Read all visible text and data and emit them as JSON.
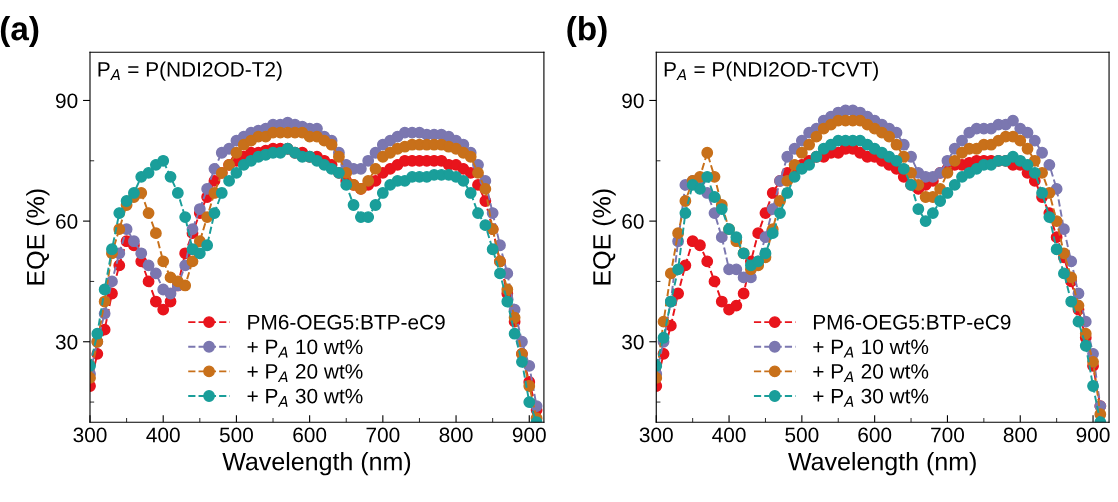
{
  "chart_data": [
    {
      "type": "line",
      "title": "(a)",
      "xlabel": "Wavelength (nm)",
      "ylabel": "EQE (%)",
      "annotations": [
        "P$_{A}$ = P(NDI2OD-T2)"
      ],
      "x": [
        300,
        310,
        320,
        330,
        340,
        350,
        360,
        370,
        380,
        390,
        400,
        410,
        420,
        430,
        440,
        450,
        460,
        470,
        480,
        490,
        500,
        510,
        520,
        530,
        540,
        550,
        560,
        570,
        580,
        590,
        600,
        610,
        620,
        630,
        640,
        650,
        660,
        670,
        680,
        690,
        700,
        710,
        720,
        730,
        740,
        750,
        760,
        770,
        780,
        790,
        800,
        810,
        820,
        830,
        840,
        850,
        860,
        870,
        880,
        890,
        900,
        910
      ],
      "xlim": [
        300,
        920
      ],
      "xticks": [
        300,
        400,
        500,
        600,
        700,
        800,
        900
      ],
      "ylim": [
        10,
        102
      ],
      "yticks": [
        30,
        60,
        90
      ],
      "grid": false,
      "legend": "bottom",
      "marker": "circle",
      "line_style": "dashed",
      "series": [
        {
          "name": "PM6-OEG5:BTP-eC9",
          "color": "#e8141c",
          "values": [
            19,
            27,
            33,
            42,
            49,
            55,
            54,
            50,
            45,
            40,
            38,
            40,
            44,
            52,
            57,
            62,
            66,
            70,
            72,
            74,
            75,
            76,
            77,
            77,
            77.5,
            78,
            78,
            78,
            77,
            77,
            76,
            76,
            75,
            74,
            72,
            70,
            69,
            68,
            69,
            70,
            72,
            73,
            74,
            75,
            75,
            75,
            75,
            75,
            75,
            74,
            74,
            73,
            72,
            69,
            65,
            58,
            50,
            42,
            35,
            27,
            20,
            13
          ]
        },
        {
          "name": "+ P$_{A}$ 10 wt%",
          "color": "#7b77b0",
          "values": [
            22,
            30,
            37,
            45,
            52,
            58,
            55,
            52,
            49,
            47,
            43,
            42,
            44,
            49,
            58,
            63,
            68,
            73,
            77,
            78,
            80,
            81,
            82,
            82.5,
            83,
            84,
            84,
            84.5,
            84,
            83.5,
            83,
            83,
            81,
            80,
            77,
            74,
            73,
            73,
            75,
            77,
            79,
            80,
            81,
            82,
            82,
            82,
            81.5,
            81.5,
            81.5,
            81,
            80,
            79,
            77,
            74,
            70,
            62,
            54,
            47,
            38,
            30,
            24,
            14
          ]
        },
        {
          "name": "+ P$_{A}$ 20 wt%",
          "color": "#c8701a",
          "values": [
            21,
            30,
            40,
            52,
            58,
            64,
            66,
            67,
            62,
            57,
            50,
            46,
            45,
            44,
            50,
            55,
            61,
            67,
            72,
            74,
            77,
            79,
            80,
            81,
            81,
            82,
            82,
            82,
            82,
            82,
            81,
            81,
            80,
            79,
            76,
            72,
            69,
            68,
            70,
            73,
            76,
            77,
            78,
            78.5,
            79,
            79,
            79,
            79,
            79,
            78.5,
            78,
            77,
            76,
            72,
            68,
            58,
            50,
            43,
            36,
            27,
            19,
            11
          ]
        },
        {
          "name": "+ P$_{A}$ 30 wt%",
          "color": "#1a9e9a",
          "values": [
            24,
            32,
            43,
            53,
            62,
            65,
            67,
            71,
            72,
            74,
            75,
            71,
            67,
            61,
            53,
            52,
            54,
            62,
            67,
            70,
            72,
            74,
            75,
            76,
            76.5,
            77,
            77,
            78,
            77,
            76,
            76,
            75,
            74,
            73,
            72,
            69,
            64,
            61,
            61,
            64,
            67,
            69,
            70,
            70,
            71,
            71,
            71,
            71.5,
            71.5,
            71.5,
            71,
            70,
            67,
            62,
            59,
            53,
            47,
            40,
            32,
            25,
            15,
            10
          ]
        }
      ]
    },
    {
      "type": "line",
      "title": "(b)",
      "xlabel": "Wavelength (nm)",
      "ylabel": "EQE (%)",
      "annotations": [
        "P$_{A}$ = P(NDI2OD-TCVT)"
      ],
      "x": [
        300,
        310,
        320,
        330,
        340,
        350,
        360,
        370,
        380,
        390,
        400,
        410,
        420,
        430,
        440,
        450,
        460,
        470,
        480,
        490,
        500,
        510,
        520,
        530,
        540,
        550,
        560,
        570,
        580,
        590,
        600,
        610,
        620,
        630,
        640,
        650,
        660,
        670,
        680,
        690,
        700,
        710,
        720,
        730,
        740,
        750,
        760,
        770,
        780,
        790,
        800,
        810,
        820,
        830,
        840,
        850,
        860,
        870,
        880,
        890,
        900,
        910
      ],
      "xlim": [
        300,
        922
      ],
      "xticks": [
        300,
        400,
        500,
        600,
        700,
        800,
        900
      ],
      "ylim": [
        10,
        102
      ],
      "yticks": [
        30,
        60,
        90
      ],
      "grid": false,
      "legend": "bottom",
      "marker": "circle",
      "line_style": "dashed",
      "series": [
        {
          "name": "PM6-OEG5:BTP-eC9",
          "color": "#e8141c",
          "values": [
            19,
            27,
            34,
            42,
            49,
            55,
            54,
            50,
            45,
            40,
            38,
            39,
            42,
            50,
            57,
            62,
            67,
            70,
            72,
            73,
            74,
            75,
            76,
            76,
            77,
            77,
            78,
            78,
            77,
            76,
            76,
            75,
            74,
            73,
            71,
            69,
            68,
            69,
            70,
            72,
            73,
            74,
            74,
            74.5,
            75,
            75,
            75,
            75,
            75,
            74,
            74,
            72,
            70,
            66,
            62,
            56,
            51,
            45,
            38,
            31,
            24,
            14
          ]
        },
        {
          "name": "+ P$_{A}$ 10 wt%",
          "color": "#7b77b0",
          "values": [
            22,
            30,
            40,
            55,
            69,
            70,
            70,
            67,
            62,
            56,
            48,
            48,
            46,
            46,
            50,
            56,
            63,
            70,
            76,
            78,
            80,
            82,
            83,
            85,
            86,
            87,
            87.5,
            87.5,
            87,
            86,
            85,
            84,
            83,
            82,
            79,
            76,
            72,
            71,
            71,
            72,
            75,
            78,
            80,
            82,
            83,
            83,
            83,
            84,
            84,
            85,
            83,
            82,
            80,
            77,
            74,
            68,
            58,
            50,
            42,
            35,
            27,
            14
          ]
        },
        {
          "name": "+ P$_{A}$ 20 wt%",
          "color": "#c8701a",
          "values": [
            21,
            35,
            47,
            57,
            65,
            70,
            71,
            77,
            71,
            64,
            58,
            55,
            52,
            48,
            49,
            51,
            58,
            65,
            70,
            74,
            77,
            79,
            81,
            83,
            84,
            85,
            85,
            85,
            85,
            84,
            83,
            82,
            81,
            79,
            76,
            72,
            69,
            66,
            66,
            68,
            72,
            75,
            77,
            78,
            78,
            79,
            79,
            80,
            81,
            81,
            80,
            78,
            75,
            72,
            67,
            60,
            52,
            46,
            39,
            32,
            25,
            12
          ]
        },
        {
          "name": "+ P$_{A}$ 30 wt%",
          "color": "#1a9e9a",
          "values": [
            24,
            31,
            40,
            48,
            62,
            69,
            68,
            71,
            66,
            63,
            58,
            56,
            52,
            49,
            50,
            52,
            57,
            62,
            67,
            71,
            73,
            74,
            76,
            78,
            79,
            80,
            80,
            80,
            80,
            79,
            78,
            77,
            76,
            75,
            73,
            69,
            63,
            60,
            62,
            65,
            67,
            69,
            71,
            72,
            73,
            74,
            74,
            75,
            75,
            76,
            75,
            74,
            72,
            67,
            61,
            53,
            47,
            40,
            35,
            29,
            19,
            10
          ]
        }
      ]
    }
  ]
}
